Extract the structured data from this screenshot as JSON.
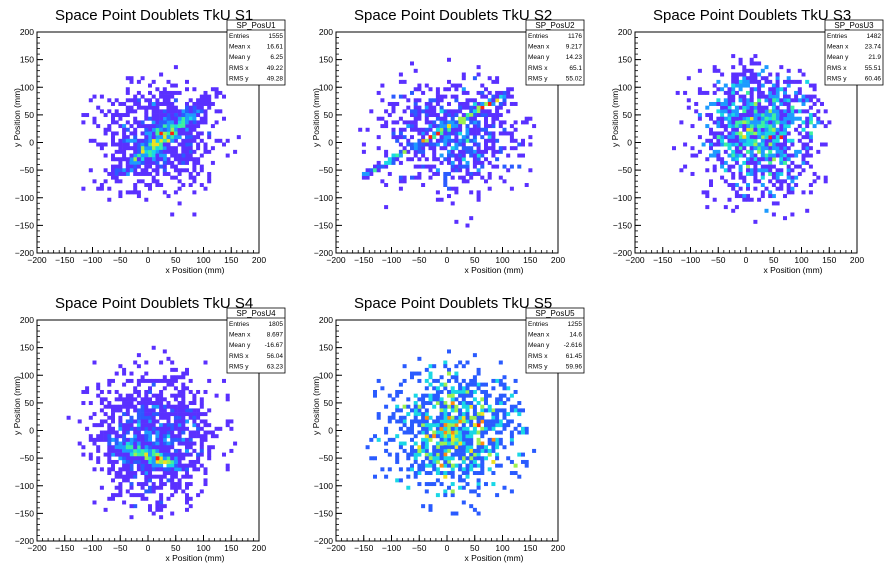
{
  "chart_data": [
    {
      "type": "heatmap",
      "title": "Space Point Doublets TkU S1",
      "xlabel": "x Position (mm)",
      "ylabel": "y Position (mm)",
      "xlim": [
        -200,
        200
      ],
      "ylim": [
        -200,
        200
      ],
      "xticks": [
        "−200",
        "−150",
        "−100",
        "−50",
        "0",
        "50",
        "100",
        "150",
        "200"
      ],
      "yticks": [
        "−200",
        "−150",
        "−100",
        "−50",
        "0",
        "50",
        "100",
        "150",
        "200"
      ],
      "stats": {
        "name": "SP_PosU1",
        "rows": [
          [
            "Entries",
            "1555"
          ],
          [
            "Mean x",
            "16.61"
          ],
          [
            "Mean y",
            "6.25"
          ],
          [
            "RMS x",
            "49.22"
          ],
          [
            "RMS y",
            "49.28"
          ]
        ]
      },
      "pattern": {
        "mx": 16.61,
        "my": 6.25,
        "sx": 49.22,
        "sy": 49.28,
        "diag": true,
        "seed": 11
      }
    },
    {
      "type": "heatmap",
      "title": "Space Point Doublets TkU S2",
      "xlabel": "x Position (mm)",
      "ylabel": "y Position (mm)",
      "xlim": [
        -200,
        200
      ],
      "ylim": [
        -200,
        200
      ],
      "xticks": [
        "−200",
        "−150",
        "−100",
        "−50",
        "0",
        "50",
        "100",
        "150",
        "200"
      ],
      "yticks": [
        "−200",
        "−150",
        "−100",
        "−50",
        "0",
        "50",
        "100",
        "150",
        "200"
      ],
      "stats": {
        "name": "SP_PosU2",
        "rows": [
          [
            "Entries",
            "1176"
          ],
          [
            "Mean x",
            "9.217"
          ],
          [
            "Mean y",
            "14.23"
          ],
          [
            "RMS x",
            "65.1"
          ],
          [
            "RMS y",
            "55.02"
          ]
        ]
      },
      "pattern": {
        "mx": 9.217,
        "my": 14.23,
        "sx": 65.1,
        "sy": 55.02,
        "line": [
          -150,
          -60,
          110,
          90
        ],
        "seed": 23
      }
    },
    {
      "type": "heatmap",
      "title": "Space Point Doublets TkU S3",
      "xlabel": "x Position (mm)",
      "ylabel": "y Position (mm)",
      "xlim": [
        -200,
        200
      ],
      "ylim": [
        -200,
        200
      ],
      "xticks": [
        "−200",
        "−150",
        "−100",
        "−50",
        "0",
        "50",
        "100",
        "150",
        "200"
      ],
      "yticks": [
        "−200",
        "−150",
        "−100",
        "−50",
        "0",
        "50",
        "100",
        "150",
        "200"
      ],
      "stats": {
        "name": "SP_PosU3",
        "rows": [
          [
            "Entries",
            "1482"
          ],
          [
            "Mean x",
            "23.74"
          ],
          [
            "Mean y",
            "21.9"
          ],
          [
            "RMS x",
            "55.51"
          ],
          [
            "RMS y",
            "60.46"
          ]
        ]
      },
      "pattern": {
        "mx": 23.74,
        "my": 21.9,
        "sx": 55.51,
        "sy": 60.46,
        "seed": 37
      }
    },
    {
      "type": "heatmap",
      "title": "Space Point Doublets TkU S4",
      "xlabel": "x Position (mm)",
      "ylabel": "y Position (mm)",
      "xlim": [
        -200,
        200
      ],
      "ylim": [
        -200,
        200
      ],
      "xticks": [
        "−200",
        "−150",
        "−100",
        "−50",
        "0",
        "50",
        "100",
        "150",
        "200"
      ],
      "yticks": [
        "−200",
        "−150",
        "−100",
        "−50",
        "0",
        "50",
        "100",
        "150",
        "200"
      ],
      "stats": {
        "name": "SP_PosU4",
        "rows": [
          [
            "Entries",
            "1805"
          ],
          [
            "Mean x",
            "8.697"
          ],
          [
            "Mean y",
            "-16.67"
          ],
          [
            "RMS x",
            "56.04"
          ],
          [
            "RMS y",
            "63.23"
          ]
        ]
      },
      "pattern": {
        "mx": 8.697,
        "my": -16.67,
        "sx": 56.04,
        "sy": 63.23,
        "antidiag": true,
        "seed": 41
      }
    },
    {
      "type": "heatmap",
      "title": "Space Point Doublets TkU S5",
      "xlabel": "x Position (mm)",
      "ylabel": "y Position (mm)",
      "xlim": [
        -200,
        200
      ],
      "ylim": [
        -200,
        200
      ],
      "xticks": [
        "−200",
        "−150",
        "−100",
        "−50",
        "0",
        "50",
        "100",
        "150",
        "200"
      ],
      "yticks": [
        "−200",
        "−150",
        "−100",
        "−50",
        "0",
        "50",
        "100",
        "150",
        "200"
      ],
      "stats": {
        "name": "SP_PosU5",
        "rows": [
          [
            "Entries",
            "1255"
          ],
          [
            "Mean x",
            "14.6"
          ],
          [
            "Mean y",
            "-2.616"
          ],
          [
            "RMS x",
            "61.45"
          ],
          [
            "RMS y",
            "59.96"
          ]
        ]
      },
      "pattern": {
        "mx": 14.6,
        "my": -2.616,
        "sx": 61.45,
        "sy": 59.96,
        "speckle": true,
        "seed": 53
      }
    }
  ],
  "colors": {
    "palette": [
      "#7b1fff",
      "#5a30ff",
      "#2a5bff",
      "#1d9bff",
      "#19d7e6",
      "#3df0a0",
      "#9cf050",
      "#f0e020",
      "#ff8a10",
      "#ff2010"
    ]
  }
}
